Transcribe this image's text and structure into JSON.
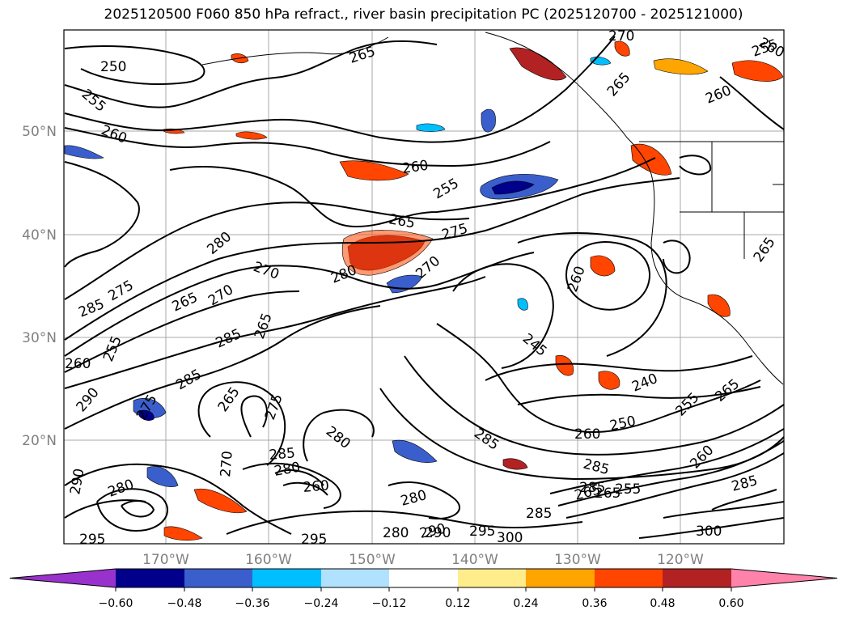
{
  "title": "2025120500 F060 850 hPa refract., river basin precipitation PC (2025120700 - 2025121000)",
  "map": {
    "lat_labels": [
      "50°N",
      "40°N",
      "30°N",
      "20°N"
    ],
    "lon_labels": [
      "170°W",
      "160°W",
      "150°W",
      "140°W",
      "130°W",
      "120°W"
    ],
    "label_color": "#808080",
    "grid_color": "#a9a9a9",
    "contour_labels": [
      "250",
      "255",
      "260",
      "265",
      "270",
      "260",
      "265",
      "255",
      "260",
      "265",
      "260",
      "255",
      "265",
      "275",
      "280",
      "270",
      "280",
      "270",
      "275",
      "285",
      "265",
      "270",
      "255",
      "260",
      "285",
      "245",
      "260",
      "265",
      "285",
      "290",
      "265",
      "275",
      "240",
      "285",
      "280",
      "250",
      "260",
      "255",
      "265",
      "285",
      "290",
      "280",
      "285",
      "280",
      "270",
      "260",
      "265",
      "285",
      "285",
      "280",
      "295",
      "290",
      "295",
      "280",
      "290",
      "295",
      "300",
      "300",
      "285",
      "265",
      "255",
      "260",
      "275"
    ]
  },
  "colorbar": {
    "tick_labels": [
      "−0.60",
      "−0.48",
      "−0.36",
      "−0.24",
      "−0.12",
      "0.12",
      "0.24",
      "0.36",
      "0.48",
      "0.60"
    ],
    "colors": {
      "under": "#9932cc",
      "levels": [
        "#00008b",
        "#3a5fcd",
        "#00bfff",
        "#b0e2ff",
        "#ffffff",
        "#ffec8b",
        "#ffa500",
        "#ff4500",
        "#b22222"
      ],
      "over": "#ff82ab"
    }
  }
}
